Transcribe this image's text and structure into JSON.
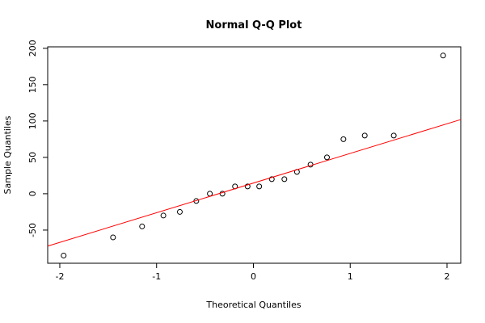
{
  "chart_data": {
    "type": "scatter",
    "title": "Normal Q-Q Plot",
    "x_label": "Theoretical Quantiles",
    "y_label": "Sample Quantiles",
    "x": [
      -1.96,
      -1.45,
      -1.15,
      -0.93,
      -0.76,
      -0.59,
      -0.45,
      -0.32,
      -0.19,
      -0.06,
      0.06,
      0.19,
      0.32,
      0.45,
      0.59,
      0.76,
      0.93,
      1.15,
      1.45,
      1.96
    ],
    "y": [
      -85,
      -60,
      -45,
      -30,
      -25,
      -10,
      0,
      0,
      10,
      10,
      10,
      20,
      20,
      30,
      40,
      50,
      75,
      80,
      80,
      190
    ],
    "color": "#000000",
    "reference_line": {
      "x": [
        -2.125,
        2.142
      ],
      "y": [
        -72,
        102
      ],
      "color": "#ff0000"
    },
    "xlim": [
      -2.125,
      2.142
    ],
    "ylim": [
      -95.6,
      202
    ],
    "xticks": [
      -2,
      -1,
      0,
      1,
      2
    ],
    "yticks": [
      -50,
      0,
      50,
      100,
      150,
      200
    ]
  }
}
